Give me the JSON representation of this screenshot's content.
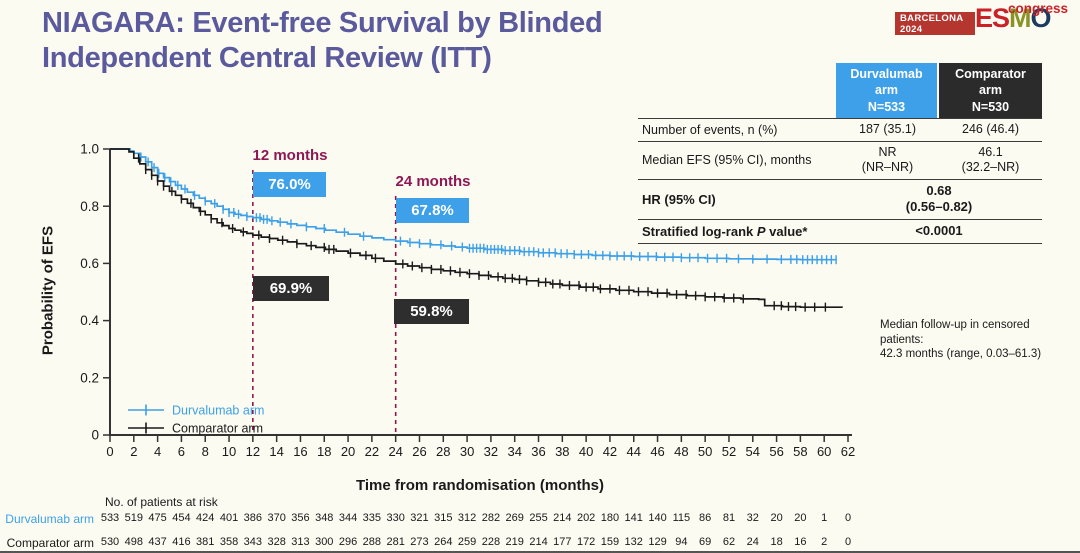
{
  "page": {
    "background": "#fbfbf2"
  },
  "header": {
    "title": "NIAGARA: Event-free Survival by Blinded\nIndependent Central Review (ITT)",
    "title_color": "#5a5a9c"
  },
  "logo": {
    "venue": "BARCELONA",
    "year": "2024",
    "letters": [
      {
        "ch": "E",
        "color": "#cb2127"
      },
      {
        "ch": "S",
        "color": "#cb2127"
      },
      {
        "ch": "M",
        "color": "#8a9426"
      },
      {
        "ch": "O",
        "color": "#1d3a5f"
      }
    ],
    "congress": "congress"
  },
  "results_table": {
    "columns": [
      {
        "title": "Durvalumab\narm\nN=533",
        "bg": "#3da0e8"
      },
      {
        "title": "Comparator\narm\nN=530",
        "bg": "#2b2b2b"
      }
    ],
    "rows": {
      "events": {
        "label": "Number of events, n (%)",
        "durvalumab": "187 (35.1)",
        "comparator": "246 (46.4)"
      },
      "median_efs": {
        "label": "Median EFS (95% CI), months",
        "durvalumab": "NR\n(NR–NR)",
        "comparator": "46.1\n(32.2–NR)"
      },
      "hr": {
        "label": "HR (95% CI)",
        "value": "0.68\n(0.56–0.82)"
      },
      "pvalue": {
        "label_pre": "Stratified log-rank ",
        "label_italic": "P",
        "label_post": " value*",
        "value": "<0.0001"
      }
    }
  },
  "chart_data": {
    "type": "line",
    "subtype": "kaplan_meier_step",
    "title": "",
    "xlabel": "Time from randomisation (months)",
    "ylabel": "Probability of EFS",
    "xlim": [
      0,
      62
    ],
    "ylim": [
      0,
      1.0
    ],
    "xticks": [
      0,
      2,
      4,
      6,
      8,
      10,
      12,
      14,
      16,
      18,
      20,
      22,
      24,
      26,
      28,
      30,
      32,
      34,
      36,
      38,
      40,
      42,
      44,
      46,
      48,
      50,
      52,
      54,
      56,
      58,
      60,
      62
    ],
    "yticks": [
      0,
      0.2,
      0.4,
      0.6,
      0.8,
      1.0
    ],
    "grid": false,
    "legend_position": "inside-bottom-left",
    "annotation_color": "#8e1853",
    "annotations": {
      "m12": {
        "x": 12,
        "label": "12 months",
        "durvalumab": "76.0%",
        "comparator": "69.9%"
      },
      "m24": {
        "x": 24,
        "label": "24 months",
        "durvalumab": "67.8%",
        "comparator": "59.8%"
      }
    },
    "series": [
      {
        "name": "Durvalumab arm",
        "color": "#3da0e8",
        "step_points": [
          [
            0,
            1
          ],
          [
            1.3,
            1
          ],
          [
            1.7,
            0.993
          ],
          [
            2,
            0.985
          ],
          [
            2.5,
            0.972
          ],
          [
            3,
            0.955
          ],
          [
            3.5,
            0.935
          ],
          [
            4,
            0.915
          ],
          [
            4.5,
            0.9
          ],
          [
            5,
            0.886
          ],
          [
            5.5,
            0.873
          ],
          [
            6,
            0.86
          ],
          [
            6.5,
            0.849
          ],
          [
            7,
            0.838
          ],
          [
            7.5,
            0.828
          ],
          [
            8,
            0.818
          ],
          [
            8.5,
            0.809
          ],
          [
            9,
            0.8
          ],
          [
            9.5,
            0.789
          ],
          [
            10,
            0.778
          ],
          [
            10.5,
            0.772
          ],
          [
            11,
            0.768
          ],
          [
            11.5,
            0.764
          ],
          [
            12,
            0.76
          ],
          [
            12.7,
            0.754
          ],
          [
            13.4,
            0.749
          ],
          [
            14.1,
            0.744
          ],
          [
            14.9,
            0.738
          ],
          [
            15.7,
            0.733
          ],
          [
            16.5,
            0.728
          ],
          [
            17.3,
            0.722
          ],
          [
            18.1,
            0.716
          ],
          [
            19,
            0.709
          ],
          [
            20,
            0.702
          ],
          [
            21,
            0.695
          ],
          [
            22,
            0.689
          ],
          [
            23,
            0.683
          ],
          [
            24,
            0.678
          ],
          [
            25,
            0.673
          ],
          [
            26,
            0.669
          ],
          [
            27,
            0.665
          ],
          [
            28,
            0.661
          ],
          [
            29,
            0.657
          ],
          [
            30,
            0.653
          ],
          [
            31.5,
            0.649
          ],
          [
            33,
            0.645
          ],
          [
            34.5,
            0.641
          ],
          [
            36,
            0.637
          ],
          [
            37.5,
            0.634
          ],
          [
            39,
            0.631
          ],
          [
            40.5,
            0.628
          ],
          [
            42,
            0.626
          ],
          [
            44,
            0.624
          ],
          [
            46,
            0.622
          ],
          [
            48,
            0.62
          ],
          [
            50,
            0.618
          ],
          [
            52,
            0.616
          ],
          [
            54,
            0.615
          ],
          [
            56,
            0.614
          ],
          [
            58,
            0.613
          ],
          [
            61,
            0.613
          ]
        ],
        "censor_months": [
          2.6,
          3.2,
          3.7,
          4.1,
          4.6,
          5.1,
          5.7,
          6.3,
          7.1,
          8,
          8.8,
          9.5,
          10,
          10.4,
          10.8,
          11.5,
          12.3,
          12.6,
          12.9,
          13.2,
          13.6,
          14.3,
          15.2,
          16.5,
          18,
          19.7,
          21.3,
          24.4,
          25.2,
          26,
          26.9,
          27.8,
          28.7,
          29.6,
          30.2,
          30.5,
          30.8,
          31.1,
          31.4,
          31.7,
          32,
          32.3,
          32.6,
          32.9,
          33.2,
          33.6,
          34,
          34.4,
          34.8,
          35.2,
          35.6,
          36,
          36.4,
          36.9,
          37.4,
          37.9,
          38.4,
          39,
          39.6,
          40.2,
          40.8,
          41.4,
          42,
          42.6,
          43.2,
          43.8,
          44.5,
          45.2,
          45.9,
          46.6,
          47.3,
          48,
          48.7,
          49.4,
          50.2,
          51,
          51.8,
          52.8,
          54,
          55.2,
          56.4,
          57.2,
          57.7,
          58.2,
          58.6,
          59,
          59.4,
          59.8,
          60.2,
          60.6,
          61
        ]
      },
      {
        "name": "Comparator arm",
        "color": "#1a1a1a",
        "step_points": [
          [
            0,
            1
          ],
          [
            1.2,
            1
          ],
          [
            1.6,
            0.99
          ],
          [
            2,
            0.968
          ],
          [
            2.5,
            0.948
          ],
          [
            3,
            0.928
          ],
          [
            3.5,
            0.908
          ],
          [
            4,
            0.888
          ],
          [
            4.5,
            0.87
          ],
          [
            5,
            0.852
          ],
          [
            5.5,
            0.838
          ],
          [
            6,
            0.825
          ],
          [
            6.5,
            0.81
          ],
          [
            7,
            0.795
          ],
          [
            7.5,
            0.782
          ],
          [
            8,
            0.77
          ],
          [
            8.5,
            0.756
          ],
          [
            9,
            0.742
          ],
          [
            9.5,
            0.732
          ],
          [
            10,
            0.722
          ],
          [
            10.5,
            0.716
          ],
          [
            11,
            0.71
          ],
          [
            11.5,
            0.705
          ],
          [
            12,
            0.699
          ],
          [
            12.7,
            0.692
          ],
          [
            13.4,
            0.687
          ],
          [
            14.1,
            0.681
          ],
          [
            14.9,
            0.675
          ],
          [
            15.7,
            0.669
          ],
          [
            16.5,
            0.662
          ],
          [
            17.3,
            0.656
          ],
          [
            18.1,
            0.649
          ],
          [
            19,
            0.643
          ],
          [
            20,
            0.636
          ],
          [
            21,
            0.628
          ],
          [
            22,
            0.618
          ],
          [
            23,
            0.608
          ],
          [
            24,
            0.598
          ],
          [
            25,
            0.591
          ],
          [
            26,
            0.585
          ],
          [
            27,
            0.579
          ],
          [
            28,
            0.574
          ],
          [
            29,
            0.569
          ],
          [
            30,
            0.564
          ],
          [
            31,
            0.558
          ],
          [
            32,
            0.553
          ],
          [
            33,
            0.548
          ],
          [
            34,
            0.544
          ],
          [
            35,
            0.539
          ],
          [
            36,
            0.534
          ],
          [
            37,
            0.528
          ],
          [
            38,
            0.523
          ],
          [
            39.5,
            0.517
          ],
          [
            41,
            0.511
          ],
          [
            42.5,
            0.506
          ],
          [
            44,
            0.501
          ],
          [
            45.5,
            0.496
          ],
          [
            47,
            0.491
          ],
          [
            48.5,
            0.487
          ],
          [
            50,
            0.483
          ],
          [
            51.5,
            0.479
          ],
          [
            53,
            0.476
          ],
          [
            54.5,
            0.474
          ],
          [
            55,
            0.452
          ],
          [
            56.5,
            0.449
          ],
          [
            58,
            0.447
          ],
          [
            61.5,
            0.445
          ]
        ],
        "censor_months": [
          2.4,
          3,
          3.5,
          4,
          4.5,
          5.2,
          6,
          6.8,
          7.6,
          8.5,
          9.4,
          10.3,
          11.2,
          12.5,
          13.4,
          14.5,
          15.7,
          16.9,
          18,
          18.4,
          18.8,
          20.2,
          21.5,
          22.3,
          24.6,
          25.4,
          26.2,
          27,
          27.8,
          28.6,
          29.4,
          30.2,
          31,
          31.8,
          32.6,
          33.2,
          33.8,
          34.4,
          35,
          36,
          36.6,
          37.2,
          37.8,
          38.6,
          39.4,
          40,
          40.6,
          41.2,
          42,
          42.8,
          43.6,
          44.4,
          45.2,
          46,
          46.8,
          47.6,
          48.4,
          49.2,
          50,
          50.8,
          51.6,
          52.4,
          53.2,
          55.8,
          56.4,
          57,
          57.6,
          58.4,
          59.2,
          60.1
        ]
      }
    ]
  },
  "footnote": {
    "median_followup": "Median follow-up in censored patients:\n42.3 months (range, 0.03–61.3)"
  },
  "at_risk": {
    "heading": "No. of patients at risk",
    "months": [
      0,
      2,
      4,
      6,
      8,
      10,
      12,
      14,
      16,
      18,
      20,
      22,
      24,
      26,
      28,
      30,
      32,
      34,
      36,
      38,
      40,
      42,
      44,
      46,
      48,
      50,
      52,
      54,
      56,
      58,
      60,
      62
    ],
    "rows": [
      {
        "label": "Durvalumab arm",
        "color": "#3da0e8",
        "values": [
          533,
          519,
          475,
          454,
          424,
          401,
          386,
          370,
          356,
          348,
          344,
          335,
          330,
          321,
          315,
          312,
          282,
          269,
          255,
          214,
          202,
          180,
          141,
          140,
          115,
          86,
          81,
          32,
          20,
          20,
          1,
          0
        ]
      },
      {
        "label": "Comparator arm",
        "color": "#1a1a1a",
        "values": [
          530,
          498,
          437,
          416,
          381,
          358,
          343,
          328,
          313,
          300,
          296,
          288,
          281,
          273,
          264,
          259,
          228,
          219,
          214,
          177,
          172,
          159,
          132,
          129,
          94,
          69,
          62,
          24,
          18,
          16,
          2,
          0
        ]
      }
    ]
  }
}
